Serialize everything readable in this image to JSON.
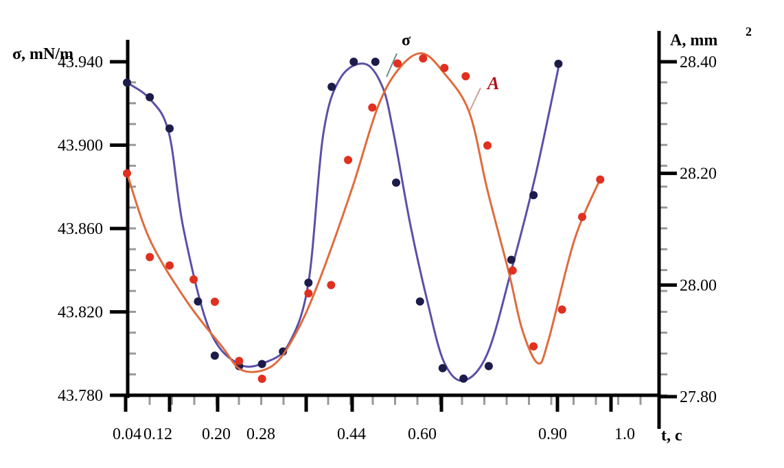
{
  "chart_data": {
    "type": "line",
    "title": "",
    "xlabel": "t, c",
    "ylabel_left": "σ, mN/m",
    "ylabel_right": "A, mm",
    "ylabel_right_sup": "2",
    "x_ticks": [
      0.04,
      0.12,
      0.2,
      0.28,
      0.44,
      0.6,
      0.9,
      1.0
    ],
    "x_tick_labels": [
      "0.04",
      "0.12",
      "0.20",
      "0.28",
      "0.44",
      "0.60",
      "0.90",
      "1.0"
    ],
    "y_left_range": [
      43.78,
      43.94
    ],
    "y_left_ticks": [
      "43.940",
      "43.900",
      "43.860",
      "43.820",
      "43.780"
    ],
    "y_right_range": [
      27.8,
      28.4
    ],
    "y_right_ticks": [
      "28.40",
      "28.20",
      "28.00",
      "27.80"
    ],
    "grid": false,
    "colors": {
      "sigma_line": "#5a4fa8",
      "sigma_points": "#1c1c4a",
      "A_line": "#e06a3c",
      "A_points": "#e03020",
      "A_label": "#b0101a"
    },
    "series": [
      {
        "name": "σ",
        "axis": "left",
        "points": [
          [
            0.04,
            43.93
          ],
          [
            0.099,
            43.923
          ],
          [
            0.136,
            43.908
          ],
          [
            0.175,
            43.825
          ],
          [
            0.198,
            43.799
          ],
          [
            0.241,
            43.794
          ],
          [
            0.282,
            43.795
          ],
          [
            0.319,
            43.801
          ],
          [
            0.364,
            43.834
          ],
          [
            0.405,
            43.928
          ],
          [
            0.445,
            43.94
          ],
          [
            0.494,
            43.94
          ],
          [
            0.541,
            43.882
          ],
          [
            0.595,
            43.825
          ],
          [
            0.647,
            43.793
          ],
          [
            0.695,
            43.788
          ],
          [
            0.753,
            43.794
          ],
          [
            0.805,
            43.845
          ],
          [
            0.856,
            43.876
          ],
          [
            0.908,
            43.939
          ]
        ],
        "curve": [
          [
            0.04,
            43.93
          ],
          [
            0.1,
            43.922
          ],
          [
            0.135,
            43.906
          ],
          [
            0.155,
            43.86
          ],
          [
            0.19,
            43.812
          ],
          [
            0.24,
            43.795
          ],
          [
            0.29,
            43.796
          ],
          [
            0.33,
            43.805
          ],
          [
            0.364,
            43.834
          ],
          [
            0.39,
            43.905
          ],
          [
            0.42,
            43.932
          ],
          [
            0.47,
            43.939
          ],
          [
            0.51,
            43.928
          ],
          [
            0.535,
            43.906
          ],
          [
            0.573,
            43.862
          ],
          [
            0.612,
            43.825
          ],
          [
            0.65,
            43.796
          ],
          [
            0.695,
            43.787
          ],
          [
            0.75,
            43.8
          ],
          [
            0.805,
            43.84
          ],
          [
            0.86,
            43.885
          ],
          [
            0.908,
            43.937
          ]
        ]
      },
      {
        "name": "A",
        "axis": "right",
        "points": [
          [
            0.04,
            28.2
          ],
          [
            0.099,
            28.05
          ],
          [
            0.136,
            28.035
          ],
          [
            0.169,
            28.01
          ],
          [
            0.198,
            27.97
          ],
          [
            0.241,
            27.864
          ],
          [
            0.282,
            27.832
          ],
          [
            0.364,
            27.985
          ],
          [
            0.404,
            28.0
          ],
          [
            0.434,
            28.224
          ],
          [
            0.487,
            28.318
          ],
          [
            0.544,
            28.397
          ],
          [
            0.602,
            28.406
          ],
          [
            0.651,
            28.389
          ],
          [
            0.7,
            28.374
          ],
          [
            0.75,
            28.25
          ],
          [
            0.808,
            28.026
          ],
          [
            0.856,
            27.89
          ],
          [
            0.913,
            27.956
          ],
          [
            0.941,
            28.122
          ],
          [
            0.966,
            28.189
          ]
        ],
        "curve": [
          [
            0.04,
            28.2
          ],
          [
            0.1,
            28.08
          ],
          [
            0.16,
            27.97
          ],
          [
            0.21,
            27.89
          ],
          [
            0.247,
            27.847
          ],
          [
            0.3,
            27.855
          ],
          [
            0.34,
            27.91
          ],
          [
            0.38,
            28.0
          ],
          [
            0.44,
            28.17
          ],
          [
            0.5,
            28.32
          ],
          [
            0.55,
            28.39
          ],
          [
            0.6,
            28.415
          ],
          [
            0.65,
            28.38
          ],
          [
            0.708,
            28.31
          ],
          [
            0.75,
            28.17
          ],
          [
            0.8,
            28.02
          ],
          [
            0.83,
            27.92
          ],
          [
            0.866,
            27.86
          ],
          [
            0.89,
            27.9
          ],
          [
            0.93,
            28.08
          ],
          [
            0.966,
            28.19
          ]
        ]
      }
    ],
    "annotations": [
      {
        "text": "σ",
        "series": "σ"
      },
      {
        "text": "A",
        "series": "A"
      }
    ]
  }
}
